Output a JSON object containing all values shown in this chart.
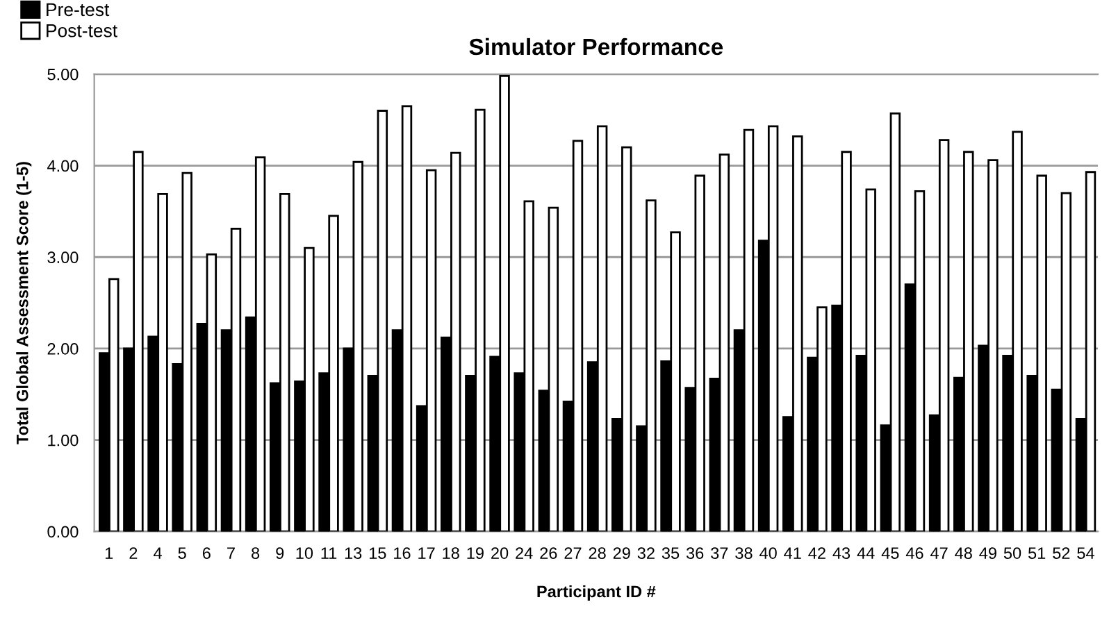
{
  "chart_data": {
    "type": "bar",
    "title": "Simulator Performance",
    "xlabel": "Participant ID #",
    "ylabel": "Total Global Assessment Score (1-5)",
    "categories": [
      "1",
      "2",
      "4",
      "5",
      "6",
      "7",
      "8",
      "9",
      "10",
      "11",
      "13",
      "15",
      "16",
      "17",
      "18",
      "19",
      "20",
      "24",
      "26",
      "27",
      "28",
      "29",
      "32",
      "35",
      "36",
      "37",
      "38",
      "40",
      "41",
      "42",
      "43",
      "44",
      "45",
      "46",
      "47",
      "48",
      "49",
      "50",
      "51",
      "52",
      "54"
    ],
    "series": [
      {
        "name": "Pre-test",
        "color": "#000000",
        "values": [
          1.95,
          2.0,
          2.13,
          1.83,
          2.27,
          2.2,
          2.34,
          1.62,
          1.64,
          1.73,
          2.0,
          1.7,
          2.2,
          1.37,
          2.12,
          1.7,
          1.91,
          1.73,
          1.54,
          1.42,
          1.85,
          1.23,
          1.15,
          1.86,
          1.57,
          1.67,
          2.2,
          3.18,
          1.25,
          1.9,
          2.47,
          1.92,
          1.16,
          2.7,
          1.27,
          1.68,
          2.03,
          1.92,
          1.7,
          1.55,
          1.23
        ]
      },
      {
        "name": "Post-test",
        "color": "#ffffff",
        "values": [
          2.76,
          4.15,
          3.69,
          3.92,
          3.03,
          3.31,
          4.09,
          3.69,
          3.1,
          3.45,
          4.04,
          4.6,
          4.65,
          3.95,
          4.14,
          4.61,
          4.98,
          3.61,
          3.54,
          4.27,
          4.43,
          4.2,
          3.62,
          3.27,
          3.89,
          4.12,
          4.39,
          4.43,
          4.32,
          2.45,
          4.15,
          3.74,
          4.57,
          3.72,
          4.28,
          4.15,
          4.06,
          4.37,
          3.89,
          3.7,
          3.93
        ]
      }
    ],
    "ylim": [
      0,
      5
    ],
    "yticks": [
      {
        "value": 0,
        "label": "0.00"
      },
      {
        "value": 1,
        "label": "1.00"
      },
      {
        "value": 2,
        "label": "2.00"
      },
      {
        "value": 3,
        "label": "3.00"
      },
      {
        "value": 4,
        "label": "4.00"
      },
      {
        "value": 5,
        "label": "5.00"
      }
    ],
    "grid": "y",
    "legend": "top left"
  }
}
